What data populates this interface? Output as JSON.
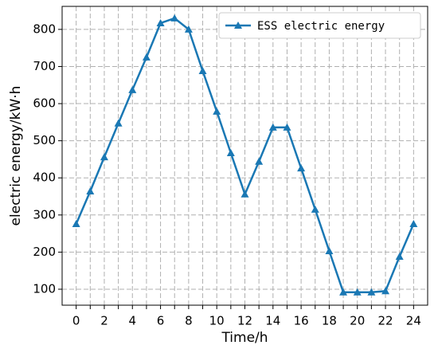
{
  "chart_data": {
    "type": "line",
    "x": [
      0,
      1,
      2,
      3,
      4,
      5,
      6,
      7,
      8,
      9,
      10,
      11,
      12,
      13,
      14,
      15,
      16,
      17,
      18,
      19,
      20,
      21,
      22,
      23,
      24
    ],
    "series": [
      {
        "name": "ESS electric energy",
        "color": "#1a78b4",
        "values": [
          276,
          364,
          456,
          547,
          637,
          725,
          817,
          830,
          800,
          688,
          579,
          467,
          356,
          444,
          536,
          536,
          426,
          315,
          203,
          92,
          92,
          92,
          95,
          188,
          276
        ]
      }
    ],
    "xlabel": "Time/h",
    "ylabel": "electric energy/kW·h",
    "xlim": [
      -1,
      25
    ],
    "ylim": [
      57,
      862
    ],
    "xticks": [
      0,
      2,
      4,
      6,
      8,
      10,
      12,
      14,
      16,
      18,
      20,
      22,
      24
    ],
    "minor_xticks": [
      1,
      3,
      5,
      7,
      9,
      11,
      13,
      15,
      17,
      19,
      21,
      23
    ],
    "yticks": [
      100,
      200,
      300,
      400,
      500,
      600,
      700,
      800
    ],
    "grid": true,
    "legend": "upper right"
  }
}
